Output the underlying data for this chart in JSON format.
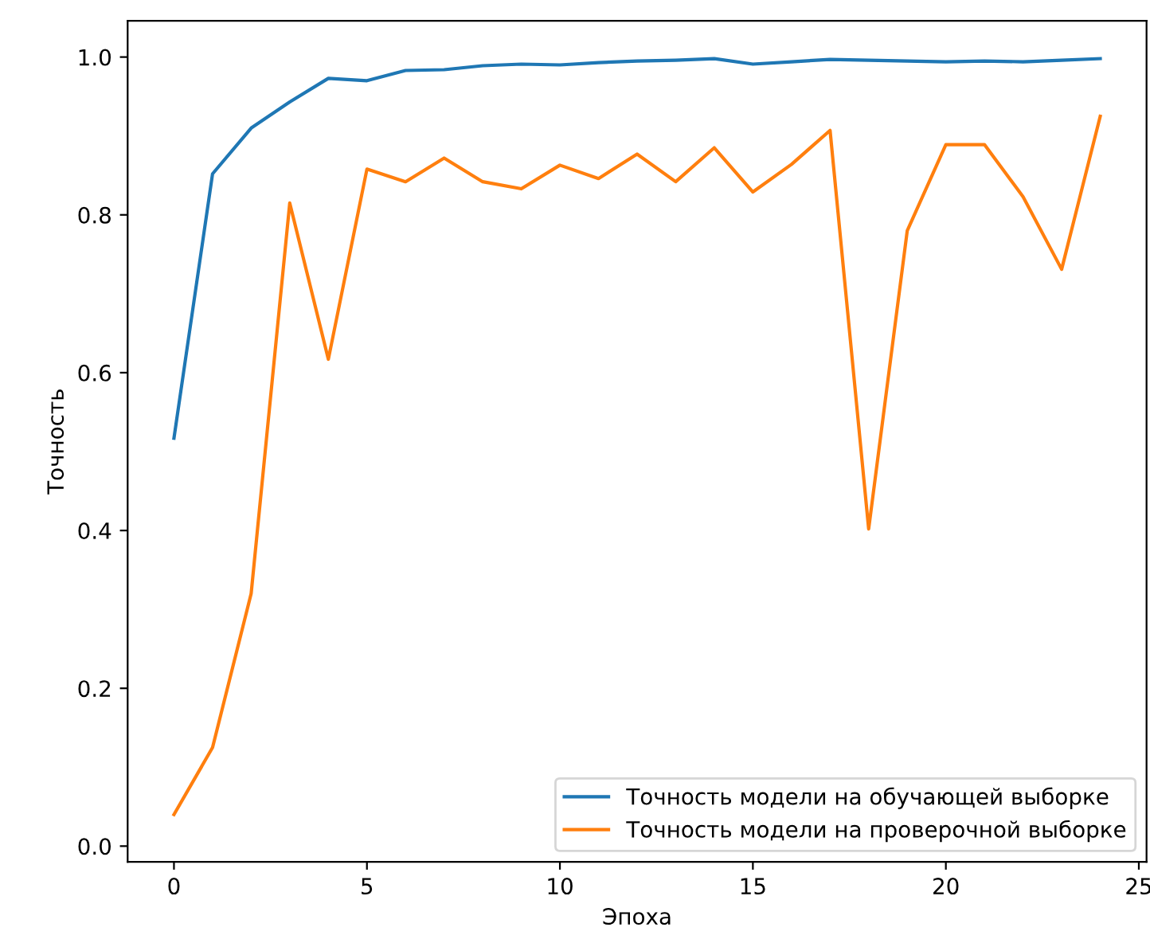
{
  "chart_data": {
    "type": "line",
    "xlabel": "Эпоха",
    "ylabel": "Точность",
    "x": [
      0,
      1,
      2,
      3,
      4,
      5,
      6,
      7,
      8,
      9,
      10,
      11,
      12,
      13,
      14,
      15,
      16,
      17,
      18,
      19,
      20,
      21,
      22,
      23,
      24
    ],
    "series": [
      {
        "name": "Точность модели на обучающей выборке",
        "color": "#1f77b4",
        "values": [
          0.517,
          0.852,
          0.91,
          0.943,
          0.973,
          0.97,
          0.983,
          0.984,
          0.989,
          0.991,
          0.99,
          0.993,
          0.995,
          0.996,
          0.998,
          0.991,
          0.994,
          0.997,
          0.996,
          0.995,
          0.994,
          0.995,
          0.994,
          0.996,
          0.998
        ]
      },
      {
        "name": "Точность модели на проверочной выборке",
        "color": "#ff7f0e",
        "values": [
          0.04,
          0.125,
          0.32,
          0.815,
          0.617,
          0.858,
          0.842,
          0.872,
          0.842,
          0.833,
          0.863,
          0.846,
          0.877,
          0.842,
          0.885,
          0.829,
          0.864,
          0.907,
          0.402,
          0.78,
          0.889,
          0.889,
          0.823,
          0.731,
          0.925
        ]
      }
    ],
    "xlim": [
      -1.2,
      25.2
    ],
    "xticks": [
      0,
      5,
      10,
      15,
      20,
      25
    ],
    "ylim": [
      -0.02,
      1.046
    ],
    "yticks": [
      {
        "value": 0,
        "label": "0.0"
      },
      {
        "value": 0.2,
        "label": "0.2"
      },
      {
        "value": 0.4,
        "label": "0.4"
      },
      {
        "value": 0.6,
        "label": "0.6"
      },
      {
        "value": 0.8,
        "label": "0.8"
      },
      {
        "value": 1,
        "label": "1.0"
      }
    ],
    "grid": false,
    "legend": "bottom right",
    "line_style": "solid",
    "marker": "none"
  }
}
